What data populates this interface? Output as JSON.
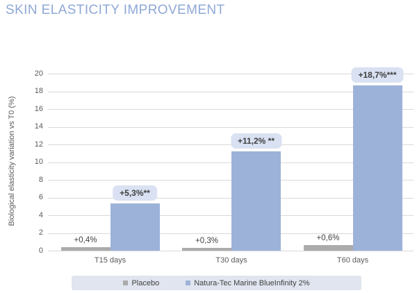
{
  "page_title": "SKIN ELASTICITY IMPROVEMENT",
  "chart_data": {
    "type": "bar",
    "title": "SKIN ELASTICITY IMPROVEMENT",
    "ylabel": "Biological elasticity variation vs T0 (%)",
    "xlabel": "",
    "categories": [
      "T15 days",
      "T30 days",
      "T60 days"
    ],
    "series": [
      {
        "name": "Placebo",
        "color": "#ababab",
        "values": [
          0.4,
          0.3,
          0.6
        ],
        "value_labels": [
          "+0,4%",
          "+0,3%",
          "+0,6%"
        ]
      },
      {
        "name": "Natura-Tec Marine BlueInfinity 2%",
        "color": "#9cb2d9",
        "values": [
          5.3,
          11.2,
          18.7
        ],
        "value_labels": [
          "+5,3%**",
          "+11,2% **",
          "+18,7%***"
        ]
      }
    ],
    "ylim": [
      0,
      20
    ],
    "yticks": [
      0,
      2,
      4,
      6,
      8,
      10,
      12,
      14,
      16,
      18,
      20
    ],
    "grid": true,
    "legend_position": "bottom",
    "colors": {
      "title": "#8fa8d6",
      "gridline": "#d9d9d9",
      "axis_text": "#595959",
      "value_text": "#3f3f3f",
      "badge_bg": "#d9e1f2",
      "legend_bg": "#e0e5ef"
    }
  }
}
